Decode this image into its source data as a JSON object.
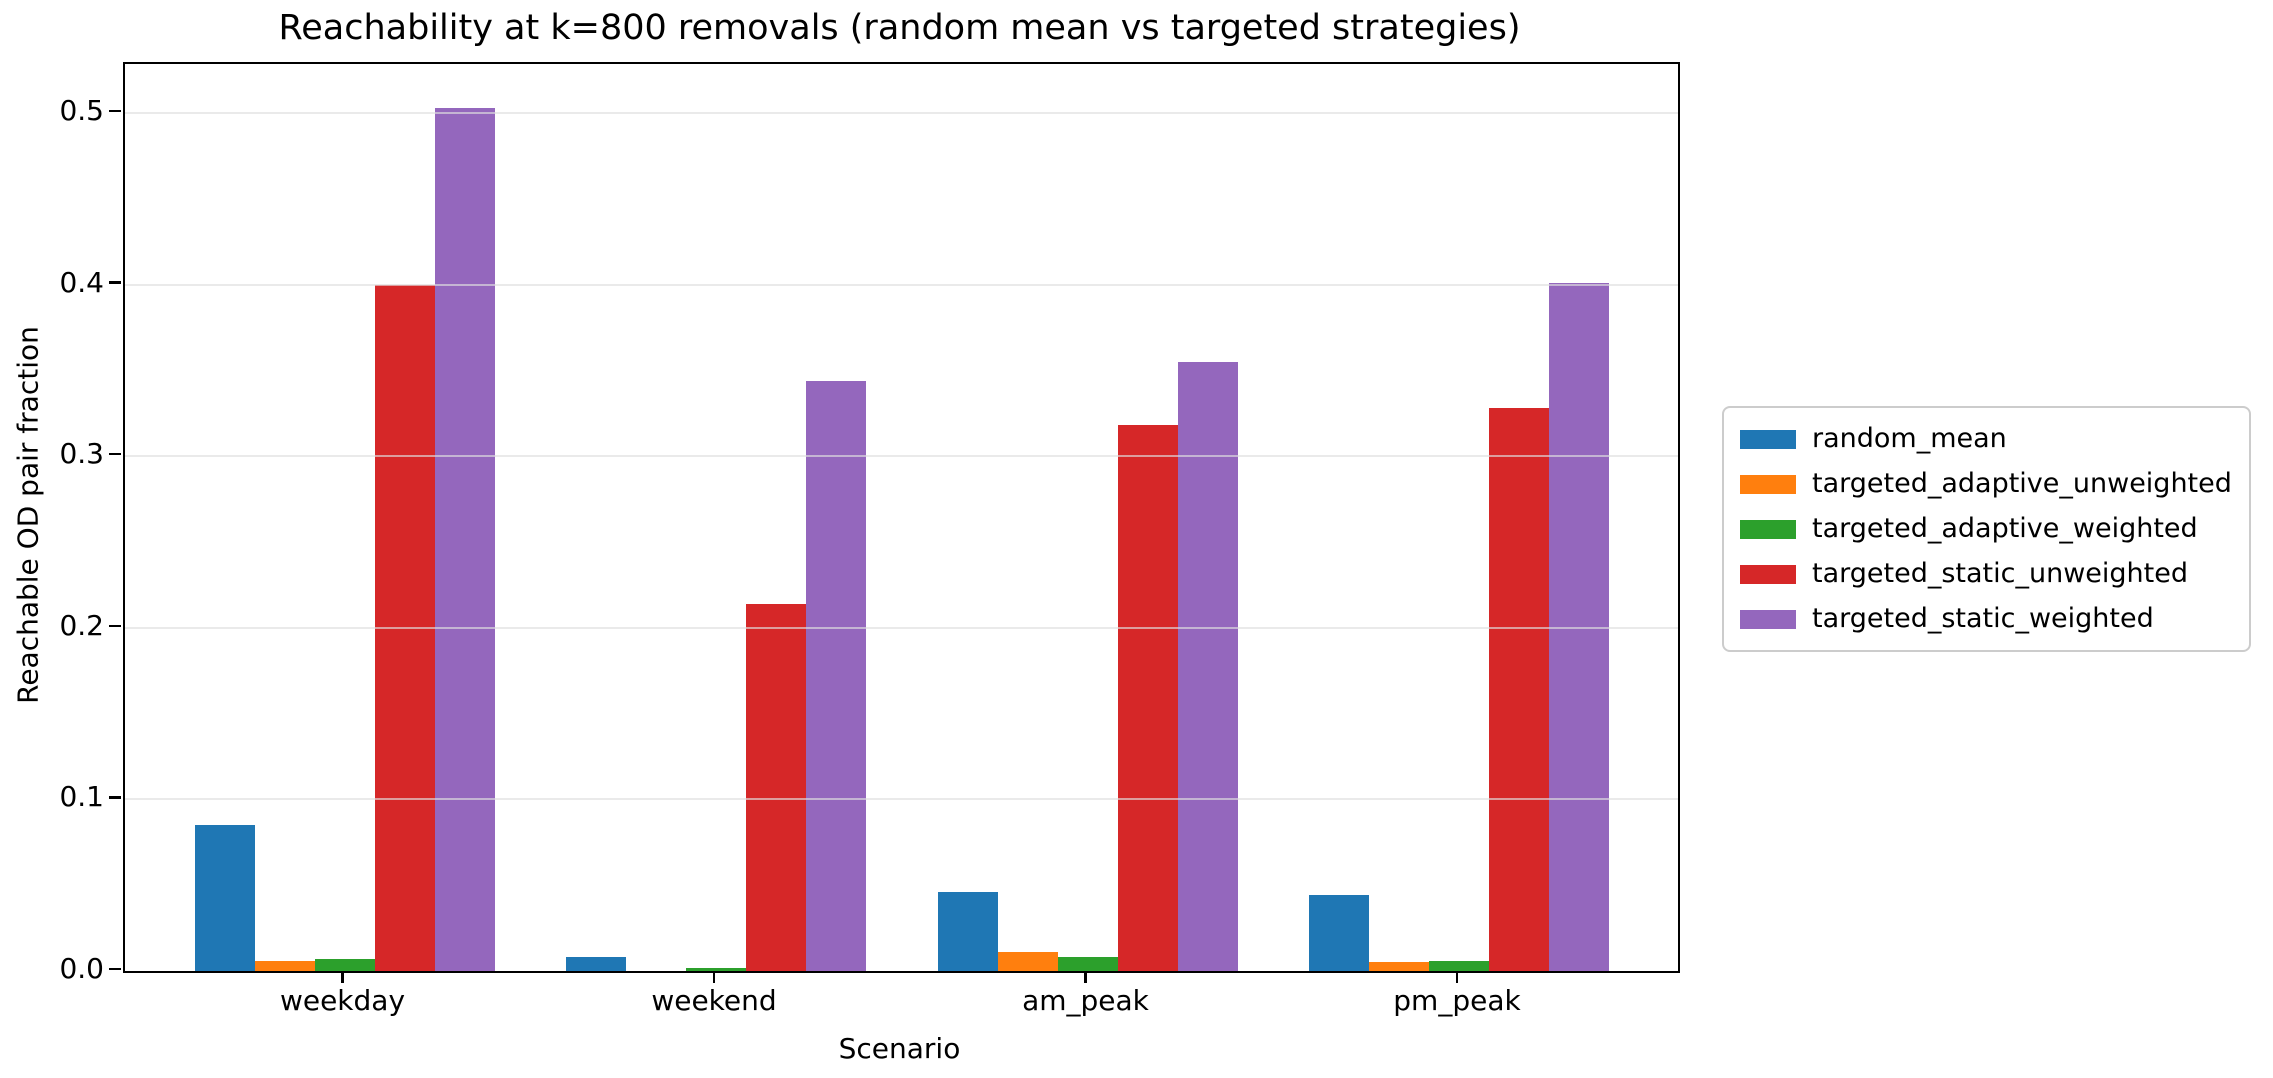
{
  "title": "Reachability at k=800 removals (random mean vs targeted strategies)",
  "chart_data": {
    "type": "bar",
    "title": "Reachability at k=800 removals (random mean vs targeted strategies)",
    "xlabel": "Scenario",
    "ylabel": "Reachable OD pair fraction",
    "categories": [
      "weekday",
      "weekend",
      "am_peak",
      "pm_peak"
    ],
    "series": [
      {
        "name": "random_mean",
        "color": "#1f77b4",
        "values": [
          0.085,
          0.008,
          0.046,
          0.044
        ]
      },
      {
        "name": "targeted_adaptive_unweighted",
        "color": "#ff7f0e",
        "values": [
          0.006,
          0.0,
          0.011,
          0.005
        ]
      },
      {
        "name": "targeted_adaptive_weighted",
        "color": "#2ca02c",
        "values": [
          0.007,
          0.002,
          0.008,
          0.006
        ]
      },
      {
        "name": "targeted_static_unweighted",
        "color": "#d62728",
        "values": [
          0.4,
          0.214,
          0.318,
          0.328
        ]
      },
      {
        "name": "targeted_static_weighted",
        "color": "#9467bd",
        "values": [
          0.503,
          0.344,
          0.355,
          0.401
        ]
      }
    ],
    "yticks": [
      "0.0",
      "0.1",
      "0.2",
      "0.3",
      "0.4",
      "0.5"
    ],
    "ylim": [
      0,
      0.5285
    ],
    "grid": "horizontal",
    "grid_color": "#e6e6e6",
    "legend_position": "right-outside",
    "spine_color": "#000000"
  }
}
